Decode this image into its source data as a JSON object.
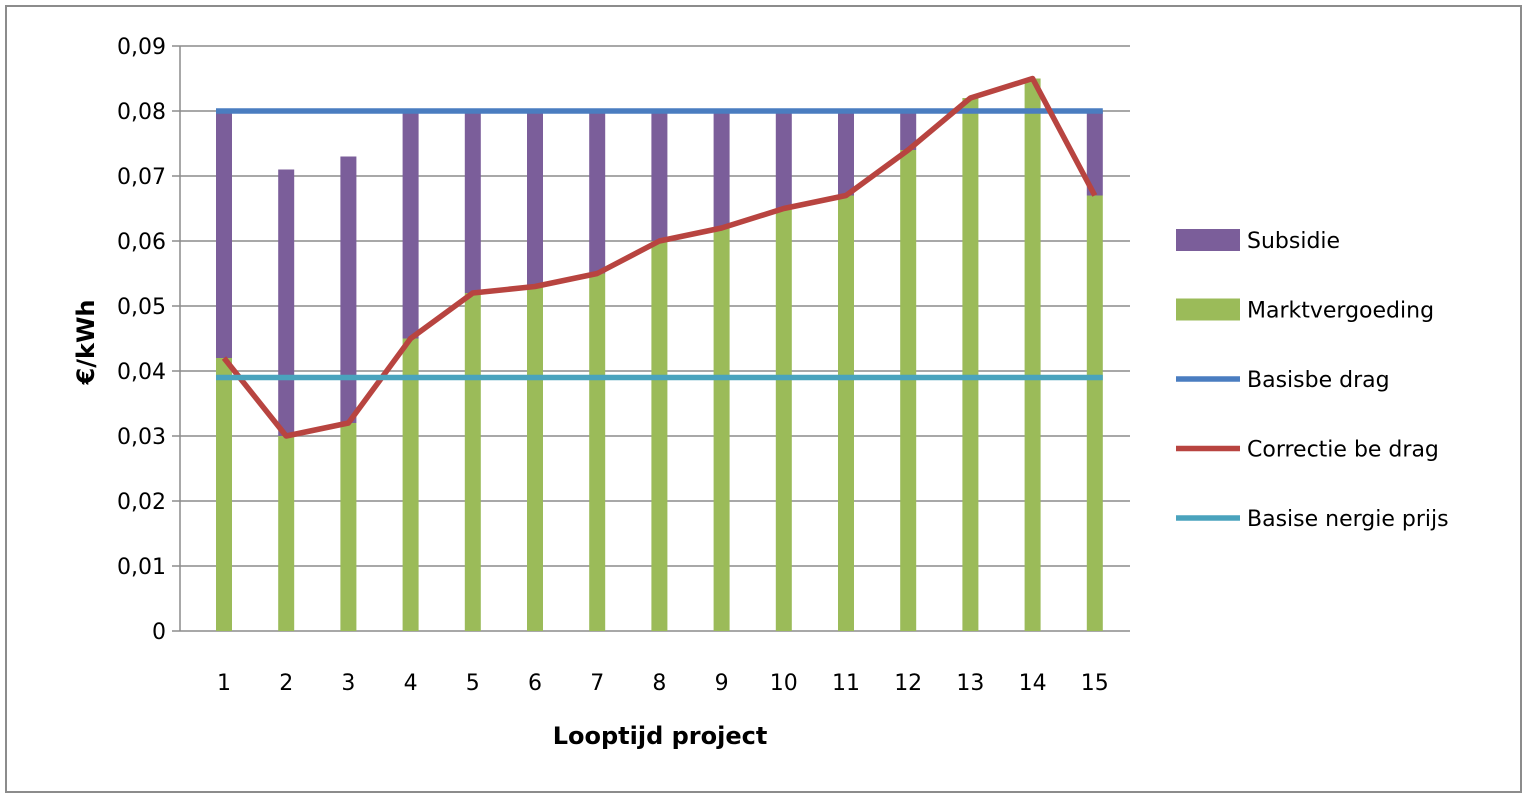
{
  "chart_data": {
    "type": "bar",
    "stacked": true,
    "categories": [
      "1",
      "2",
      "3",
      "4",
      "5",
      "6",
      "7",
      "8",
      "9",
      "10",
      "11",
      "12",
      "13",
      "14",
      "15"
    ],
    "xlabel": "Looptijd project",
    "ylabel": "€/kWh",
    "ylim": [
      0,
      0.09
    ],
    "yticks": [
      "0",
      "0,01",
      "0,02",
      "0,03",
      "0,04",
      "0,05",
      "0,06",
      "0,07",
      "0,08",
      "0,09"
    ],
    "grid": true,
    "legend_position": "right",
    "series": [
      {
        "name": "Subsidie",
        "kind": "bar",
        "color": "#7b5e9a",
        "values": [
          0.038,
          0.041,
          0.041,
          0.035,
          0.028,
          0.027,
          0.025,
          0.02,
          0.018,
          0.015,
          0.013,
          0.006,
          0.0,
          0.0,
          0.013
        ]
      },
      {
        "name": "Marktvergoeding",
        "kind": "bar",
        "color": "#9bbb59",
        "values": [
          0.042,
          0.03,
          0.032,
          0.045,
          0.052,
          0.053,
          0.055,
          0.06,
          0.062,
          0.065,
          0.067,
          0.074,
          0.082,
          0.085,
          0.067
        ]
      },
      {
        "name": "Basisbedrag",
        "kind": "line",
        "color": "#4a7dc0",
        "values": [
          0.08,
          0.08,
          0.08,
          0.08,
          0.08,
          0.08,
          0.08,
          0.08,
          0.08,
          0.08,
          0.08,
          0.08,
          0.08,
          0.08,
          0.08
        ]
      },
      {
        "name": "Correctiebedrag",
        "kind": "line",
        "color": "#b84440",
        "values": [
          0.042,
          0.03,
          0.032,
          0.045,
          0.052,
          0.053,
          0.055,
          0.06,
          0.062,
          0.065,
          0.067,
          0.074,
          0.082,
          0.085,
          0.067
        ]
      },
      {
        "name": "Basisenergieprijs",
        "kind": "line",
        "color": "#4aa3bd",
        "values": [
          0.039,
          0.039,
          0.039,
          0.039,
          0.039,
          0.039,
          0.039,
          0.039,
          0.039,
          0.039,
          0.039,
          0.039,
          0.039,
          0.039,
          0.039
        ]
      }
    ],
    "legend_labels": [
      "Subsidie",
      "Marktvergoeding",
      "Basisbe drag",
      "Correctie be drag",
      "Basise nergie prijs"
    ]
  }
}
